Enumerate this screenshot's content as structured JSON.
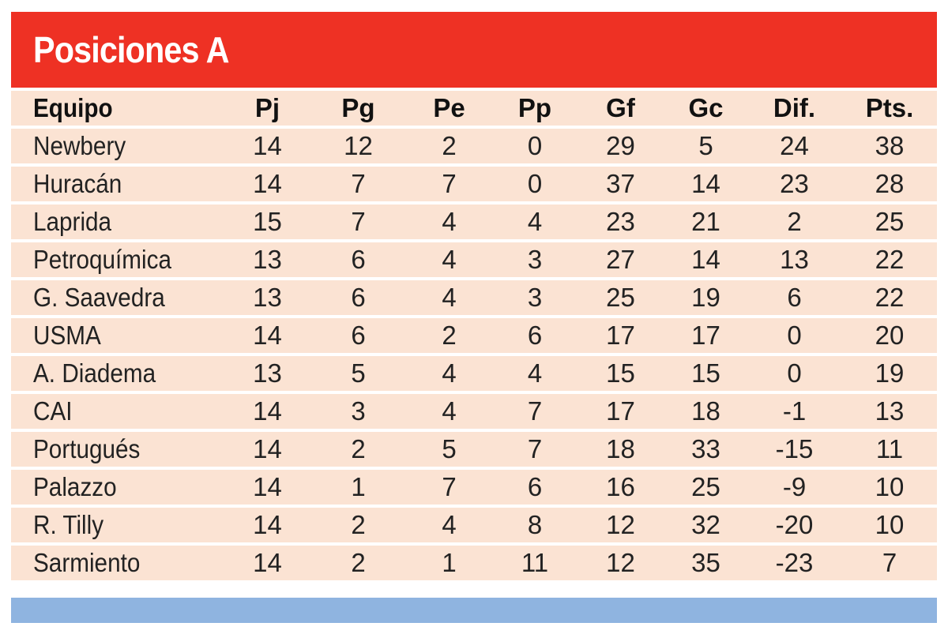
{
  "title": "Posiciones A",
  "colors": {
    "title_bg": "#ee3124",
    "row_bg": "#fbe3d3",
    "bottom_bar": "#8fb4e0"
  },
  "columns": [
    "Equipo",
    "Pj",
    "Pg",
    "Pe",
    "Pp",
    "Gf",
    "Gc",
    "Dif.",
    "Pts."
  ],
  "rows": [
    [
      "Newbery",
      "14",
      "12",
      "2",
      "0",
      "29",
      "5",
      "24",
      "38"
    ],
    [
      "Huracán",
      "14",
      "7",
      "7",
      "0",
      "37",
      "14",
      "23",
      "28"
    ],
    [
      "Laprida",
      "15",
      "7",
      "4",
      "4",
      "23",
      "21",
      "2",
      "25"
    ],
    [
      "Petroquímica",
      "13",
      "6",
      "4",
      "3",
      "27",
      "14",
      "13",
      "22"
    ],
    [
      "G. Saavedra",
      "13",
      "6",
      "4",
      "3",
      "25",
      "19",
      "6",
      "22"
    ],
    [
      "USMA",
      "14",
      "6",
      "2",
      "6",
      "17",
      "17",
      "0",
      "20"
    ],
    [
      "A. Diadema",
      "13",
      "5",
      "4",
      "4",
      "15",
      "15",
      "0",
      "19"
    ],
    [
      "CAI",
      "14",
      "3",
      "4",
      "7",
      "17",
      "18",
      "-1",
      "13"
    ],
    [
      "Portugués",
      "14",
      "2",
      "5",
      "7",
      "18",
      "33",
      "-15",
      "11"
    ],
    [
      "Palazzo",
      "14",
      "1",
      "7",
      "6",
      "16",
      "25",
      "-9",
      "10"
    ],
    [
      "R. Tilly",
      "14",
      "2",
      "4",
      "8",
      "12",
      "32",
      "-20",
      "10"
    ],
    [
      "Sarmiento",
      "14",
      "2",
      "1",
      "11",
      "12",
      "35",
      "-23",
      "7"
    ]
  ]
}
